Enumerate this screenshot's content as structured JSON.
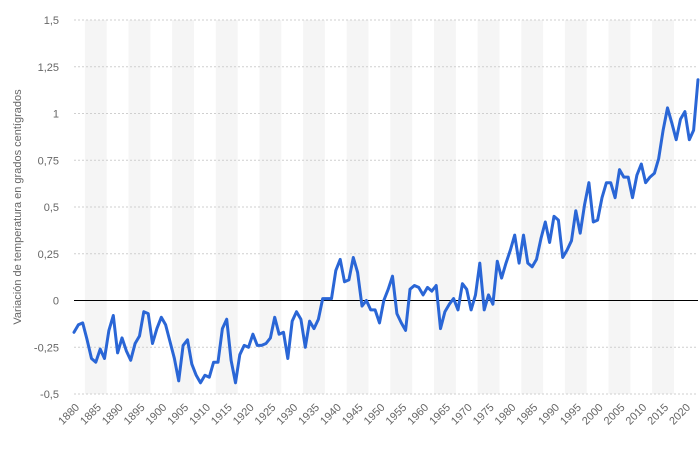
{
  "chart_data": {
    "type": "line",
    "title": "",
    "xlabel": "",
    "ylabel": "Variación de temperatura en grados centígrados",
    "xlim": [
      1880,
      2023
    ],
    "ylim": [
      -0.5,
      1.5
    ],
    "y_ticks": [
      -0.5,
      -0.25,
      0,
      0.25,
      0.5,
      0.75,
      1,
      1.25,
      1.5
    ],
    "y_tick_labels": [
      "-0,5",
      "-0,25",
      "0",
      "0,25",
      "0,5",
      "0,75",
      "1",
      "1,25",
      "1,5"
    ],
    "x_ticks": [
      1880,
      1885,
      1890,
      1895,
      1900,
      1905,
      1910,
      1915,
      1920,
      1925,
      1930,
      1935,
      1940,
      1945,
      1950,
      1955,
      1960,
      1965,
      1970,
      1975,
      1980,
      1985,
      1990,
      1995,
      2000,
      2005,
      2010,
      2015,
      2020
    ],
    "x_tick_labels": [
      "1880",
      "1885",
      "1890",
      "1895",
      "1900",
      "1905",
      "1910",
      "1915",
      "1920",
      "1925",
      "1930",
      "1935",
      "1940",
      "1945",
      "1950",
      "1955",
      "1960",
      "1965",
      "1970",
      "1975",
      "1980",
      "1985",
      "1990",
      "1995",
      "2000",
      "2005",
      "2010",
      "2015",
      "2020"
    ],
    "grid": true,
    "zero_line": true,
    "legend": "none",
    "colors": {
      "line": "#2a66d6",
      "zero_line": "#000000",
      "grid": "#cfcfcf",
      "band": "#f5f5f5"
    },
    "series": [
      {
        "x": [
          1880,
          1881,
          1882,
          1883,
          1884,
          1885,
          1886,
          1887,
          1888,
          1889,
          1890,
          1891,
          1892,
          1893,
          1894,
          1895,
          1896,
          1897,
          1898,
          1899,
          1900,
          1901,
          1902,
          1903,
          1904,
          1905,
          1906,
          1907,
          1908,
          1909,
          1910,
          1911,
          1912,
          1913,
          1914,
          1915,
          1916,
          1917,
          1918,
          1919,
          1920,
          1921,
          1922,
          1923,
          1924,
          1925,
          1926,
          1927,
          1928,
          1929,
          1930,
          1931,
          1932,
          1933,
          1934,
          1935,
          1936,
          1937,
          1938,
          1939,
          1940,
          1941,
          1942,
          1943,
          1944,
          1945,
          1946,
          1947,
          1948,
          1949,
          1950,
          1951,
          1952,
          1953,
          1954,
          1955,
          1956,
          1957,
          1958,
          1959,
          1960,
          1961,
          1962,
          1963,
          1964,
          1965,
          1966,
          1967,
          1968,
          1969,
          1970,
          1971,
          1972,
          1973,
          1974,
          1975,
          1976,
          1977,
          1978,
          1979,
          1980,
          1981,
          1982,
          1983,
          1984,
          1985,
          1986,
          1987,
          1988,
          1989,
          1990,
          1991,
          1992,
          1993,
          1994,
          1995,
          1996,
          1997,
          1998,
          1999,
          2000,
          2001,
          2002,
          2003,
          2004,
          2005,
          2006,
          2007,
          2008,
          2009,
          2010,
          2011,
          2012,
          2013,
          2014,
          2015,
          2016,
          2017,
          2018,
          2019,
          2020,
          2021,
          2022,
          2023
        ],
        "values": [
          -0.17,
          -0.13,
          -0.12,
          -0.21,
          -0.31,
          -0.33,
          -0.26,
          -0.31,
          -0.16,
          -0.08,
          -0.28,
          -0.2,
          -0.27,
          -0.32,
          -0.23,
          -0.19,
          -0.06,
          -0.07,
          -0.23,
          -0.15,
          -0.09,
          -0.13,
          -0.22,
          -0.31,
          -0.43,
          -0.24,
          -0.21,
          -0.34,
          -0.4,
          -0.44,
          -0.4,
          -0.41,
          -0.33,
          -0.33,
          -0.15,
          -0.1,
          -0.32,
          -0.44,
          -0.29,
          -0.24,
          -0.25,
          -0.18,
          -0.24,
          -0.24,
          -0.23,
          -0.2,
          -0.09,
          -0.18,
          -0.17,
          -0.31,
          -0.11,
          -0.06,
          -0.1,
          -0.25,
          -0.11,
          -0.15,
          -0.1,
          0.01,
          0.01,
          0.01,
          0.16,
          0.22,
          0.1,
          0.11,
          0.23,
          0.15,
          -0.03,
          0.0,
          -0.05,
          -0.05,
          -0.12,
          0.0,
          0.06,
          0.13,
          -0.07,
          -0.12,
          -0.16,
          0.06,
          0.08,
          0.07,
          0.03,
          0.07,
          0.05,
          0.08,
          -0.15,
          -0.06,
          -0.02,
          0.01,
          -0.05,
          0.09,
          0.06,
          -0.05,
          0.03,
          0.2,
          -0.05,
          0.03,
          -0.02,
          0.21,
          0.12,
          0.2,
          0.27,
          0.35,
          0.2,
          0.35,
          0.2,
          0.18,
          0.22,
          0.33,
          0.42,
          0.31,
          0.45,
          0.43,
          0.23,
          0.27,
          0.32,
          0.48,
          0.36,
          0.51,
          0.63,
          0.42,
          0.43,
          0.55,
          0.63,
          0.63,
          0.55,
          0.7,
          0.66,
          0.66,
          0.55,
          0.67,
          0.73,
          0.63,
          0.66,
          0.68,
          0.76,
          0.91,
          1.03,
          0.95,
          0.86,
          0.97,
          1.01,
          0.86,
          0.91,
          1.18
        ]
      }
    ]
  }
}
